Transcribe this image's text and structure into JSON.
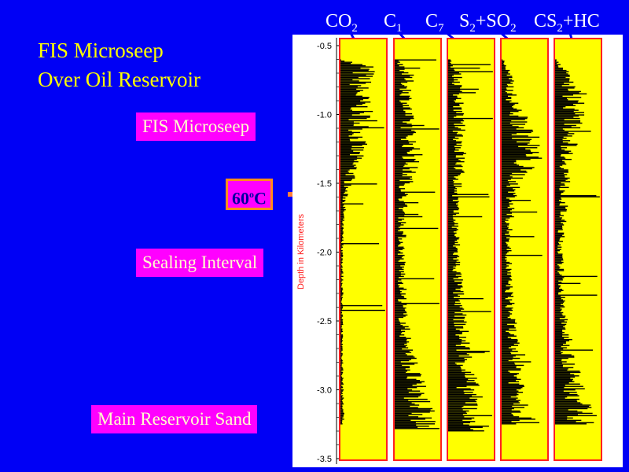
{
  "title": {
    "line1": "FIS Microseep",
    "line2": "Over Oil Reservoir"
  },
  "tags": {
    "microseep": "FIS Microseep",
    "temperature_value": "60",
    "temperature_sup": "o",
    "temperature_unit": "C",
    "sealing": "Sealing Interval",
    "reservoir": "Main Reservoir Sand"
  },
  "columns": [
    {
      "base": "CO",
      "sub": "2",
      "tail": ""
    },
    {
      "base": "C",
      "sub": "1",
      "tail": ""
    },
    {
      "base": "C",
      "sub": "7",
      "tail": ""
    },
    {
      "base": "S",
      "sub": "2",
      "tail": "+SO",
      "sub2": "2"
    },
    {
      "base": "CS",
      "sub": "2",
      "tail": "+HC"
    }
  ],
  "colors": {
    "background": "#0000f5",
    "track_fill": "#ffff00",
    "track_border": "#ff2020",
    "bars": "#000000",
    "title": "#ffff00",
    "tag_bg": "#ff00ff",
    "arrow": "#ff7f3a"
  },
  "chart_data": {
    "type": "bar",
    "orientation": "horizontal",
    "ylabel": "Depth in Kilometers",
    "ylim": [
      -3.5,
      -0.45
    ],
    "yticks": [
      -0.5,
      -1.0,
      -1.5,
      -2.0,
      -2.5,
      -3.0,
      -3.5
    ],
    "ytick_labels": [
      "-0.5",
      "-1.0",
      "-1.5",
      "-2.0",
      "-2.5",
      "-3.0",
      "-3.5"
    ],
    "series": [
      {
        "name": "CO2",
        "profile": [
          [
            -0.6,
            0.05
          ],
          [
            -0.65,
            0.7
          ],
          [
            -0.8,
            0.55
          ],
          [
            -1.0,
            0.6
          ],
          [
            -1.2,
            0.5
          ],
          [
            -1.4,
            0.35
          ],
          [
            -1.55,
            0.15
          ],
          [
            -1.8,
            0.06
          ],
          [
            -2.5,
            0.05
          ],
          [
            -3.0,
            0.06
          ],
          [
            -3.25,
            0.08
          ]
        ]
      },
      {
        "name": "C1",
        "profile": [
          [
            -0.6,
            0.05
          ],
          [
            -0.7,
            0.35
          ],
          [
            -1.0,
            0.35
          ],
          [
            -1.3,
            0.5
          ],
          [
            -1.6,
            0.25
          ],
          [
            -2.0,
            0.2
          ],
          [
            -2.5,
            0.25
          ],
          [
            -2.8,
            0.45
          ],
          [
            -3.0,
            0.6
          ],
          [
            -3.2,
            0.8
          ],
          [
            -3.28,
            0.9
          ]
        ]
      },
      {
        "name": "C7",
        "profile": [
          [
            -0.6,
            0.05
          ],
          [
            -0.7,
            0.25
          ],
          [
            -1.0,
            0.3
          ],
          [
            -1.3,
            0.35
          ],
          [
            -1.7,
            0.2
          ],
          [
            -2.1,
            0.25
          ],
          [
            -2.5,
            0.35
          ],
          [
            -2.8,
            0.5
          ],
          [
            -3.0,
            0.6
          ],
          [
            -3.2,
            0.75
          ],
          [
            -3.3,
            0.8
          ]
        ]
      },
      {
        "name": "S2+SO2",
        "profile": [
          [
            -0.6,
            0.05
          ],
          [
            -0.7,
            0.2
          ],
          [
            -0.9,
            0.3
          ],
          [
            -1.15,
            0.7
          ],
          [
            -1.3,
            0.8
          ],
          [
            -1.5,
            0.35
          ],
          [
            -1.8,
            0.2
          ],
          [
            -2.2,
            0.2
          ],
          [
            -2.6,
            0.3
          ],
          [
            -2.9,
            0.45
          ],
          [
            -3.1,
            0.6
          ],
          [
            -3.25,
            0.7
          ]
        ]
      },
      {
        "name": "CS2+HC",
        "profile": [
          [
            -0.6,
            0.05
          ],
          [
            -0.7,
            0.3
          ],
          [
            -0.9,
            0.6
          ],
          [
            -1.1,
            0.5
          ],
          [
            -1.3,
            0.35
          ],
          [
            -1.6,
            0.25
          ],
          [
            -2.0,
            0.15
          ],
          [
            -2.4,
            0.2
          ],
          [
            -2.7,
            0.35
          ],
          [
            -2.9,
            0.5
          ],
          [
            -3.1,
            0.7
          ],
          [
            -3.25,
            0.9
          ]
        ]
      }
    ]
  }
}
